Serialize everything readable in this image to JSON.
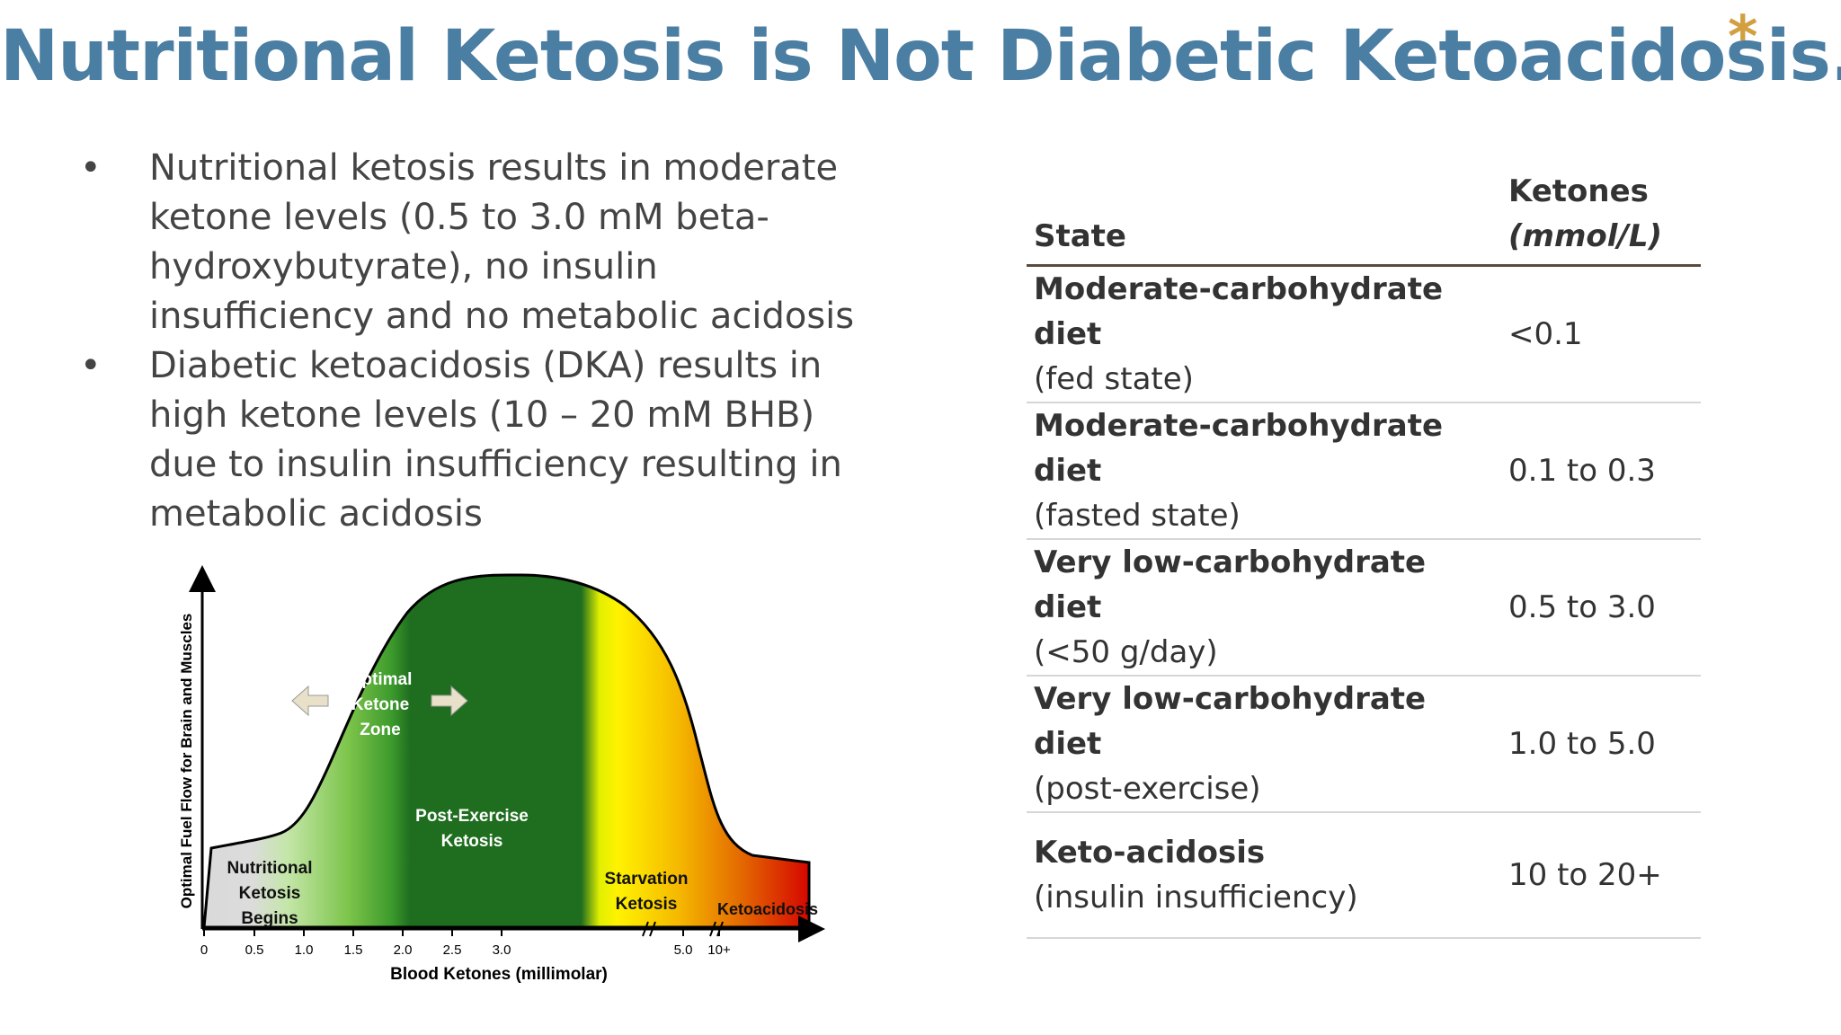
{
  "slide": {
    "title": "Nutritional Ketosis is Not Diabetic Ketoacidosis.",
    "asterisk": "*"
  },
  "bullets": [
    "Nutritional ketosis results in moderate ketone levels (0.5 to 3.0 mM beta-hydroxybutyrate), no insulin insufficiency and no metabolic acidosis",
    "Diabetic ketoacidosis (DKA) results in high ketone levels (10 – 20 mM BHB) due to insulin insufficiency resulting in metabolic acidosis"
  ],
  "table": {
    "header_state": "State",
    "header_ketones": "Ketones",
    "header_unit": "(mmol/L)",
    "rows": [
      {
        "state": "Moderate-carbohydrate diet",
        "detail": "(fed state)",
        "ketones": "<0.1"
      },
      {
        "state": "Moderate-carbohydrate diet",
        "detail": "(fasted state)",
        "ketones": "0.1 to 0.3"
      },
      {
        "state": "Very low-carbohydrate diet",
        "detail": "(<50 g/day)",
        "ketones": "0.5 to 3.0"
      },
      {
        "state": "Very low-carbohydrate diet",
        "detail": "(post-exercise)",
        "ketones": "1.0 to 5.0"
      },
      {
        "state": "Keto-acidosis",
        "detail": "(insulin insufficiency)",
        "ketones": "10 to 20+"
      }
    ]
  },
  "chart_data": {
    "type": "area",
    "title": "",
    "xlabel": "Blood Ketones (millimolar)",
    "ylabel": "Optimal Fuel Flow for Brain and Muscles",
    "x_ticks": [
      "0",
      "0.5",
      "1.0",
      "1.5",
      "2.0",
      "2.5",
      "3.0",
      "5.0",
      "10+"
    ],
    "zones": [
      {
        "name": "Nutritional Ketosis Begins",
        "color": "#8fcf5a"
      },
      {
        "name": "Optimal Ketone Zone",
        "color": "#1f6e1f"
      },
      {
        "name": "Post-Exercise Ketosis",
        "color": "#1f6e1f"
      },
      {
        "name": "Starvation Ketosis",
        "color": "#f2d000"
      },
      {
        "name": "Ketoacidosis",
        "color": "#d40000"
      }
    ],
    "labels": {
      "nutritional": [
        "Nutritional",
        "Ketosis",
        "Begins"
      ],
      "optimal": [
        "Optimal",
        "Ketone",
        "Zone"
      ],
      "post_exercise": [
        "Post-Exercise",
        "Ketosis"
      ],
      "starvation": [
        "Starvation",
        "Ketosis"
      ],
      "ketoacidosis": "Ketoacidosis"
    },
    "grid": false,
    "legend": "none"
  }
}
